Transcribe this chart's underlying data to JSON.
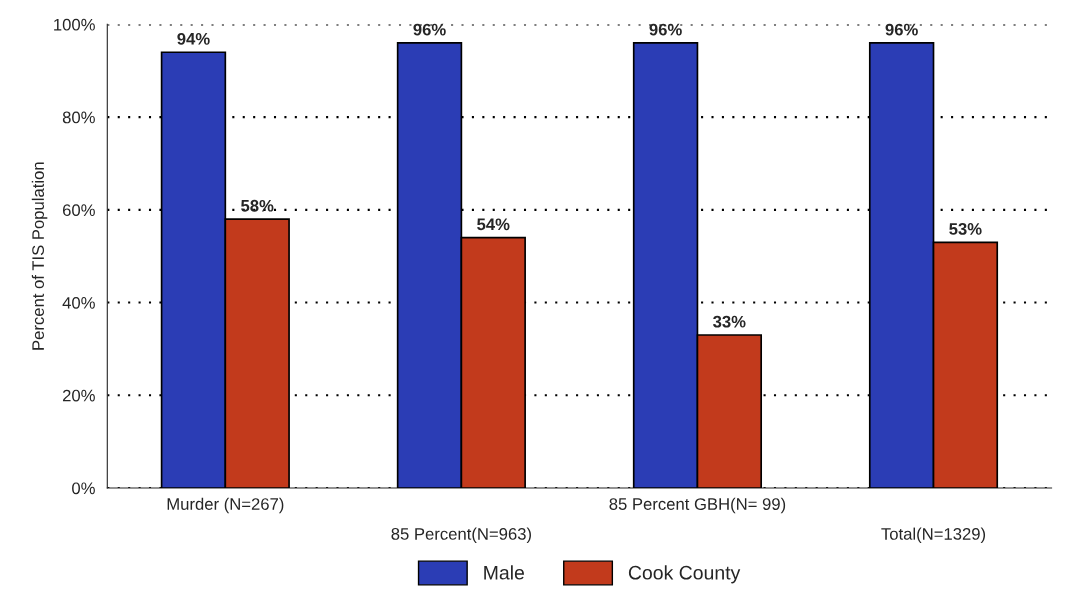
{
  "chart_data": {
    "type": "bar",
    "ylabel": "Percent of TIS Population",
    "categories": [
      "Murder (N=267)",
      "85 Percent(N=963)",
      "85 Percent GBH(N= 99)",
      "Total(N=1329)"
    ],
    "series": [
      {
        "name": "Male",
        "color": "#2b3db5",
        "values": [
          94,
          96,
          96,
          96
        ],
        "value_labels": [
          "94%",
          "96%",
          "96%",
          "96%"
        ]
      },
      {
        "name": "Cook County",
        "color": "#c23a1c",
        "values": [
          58,
          54,
          33,
          53
        ],
        "value_labels": [
          "58%",
          "54%",
          "33%",
          "53%"
        ]
      }
    ],
    "ylim": [
      0,
      100
    ],
    "yticks": [
      {
        "value": 0,
        "label": "0%"
      },
      {
        "value": 20,
        "label": "20%"
      },
      {
        "value": 40,
        "label": "40%"
      },
      {
        "value": 60,
        "label": "60%"
      },
      {
        "value": 80,
        "label": "80%"
      },
      {
        "value": 100,
        "label": "100%"
      }
    ],
    "grid": "y",
    "legend": "bottom"
  }
}
